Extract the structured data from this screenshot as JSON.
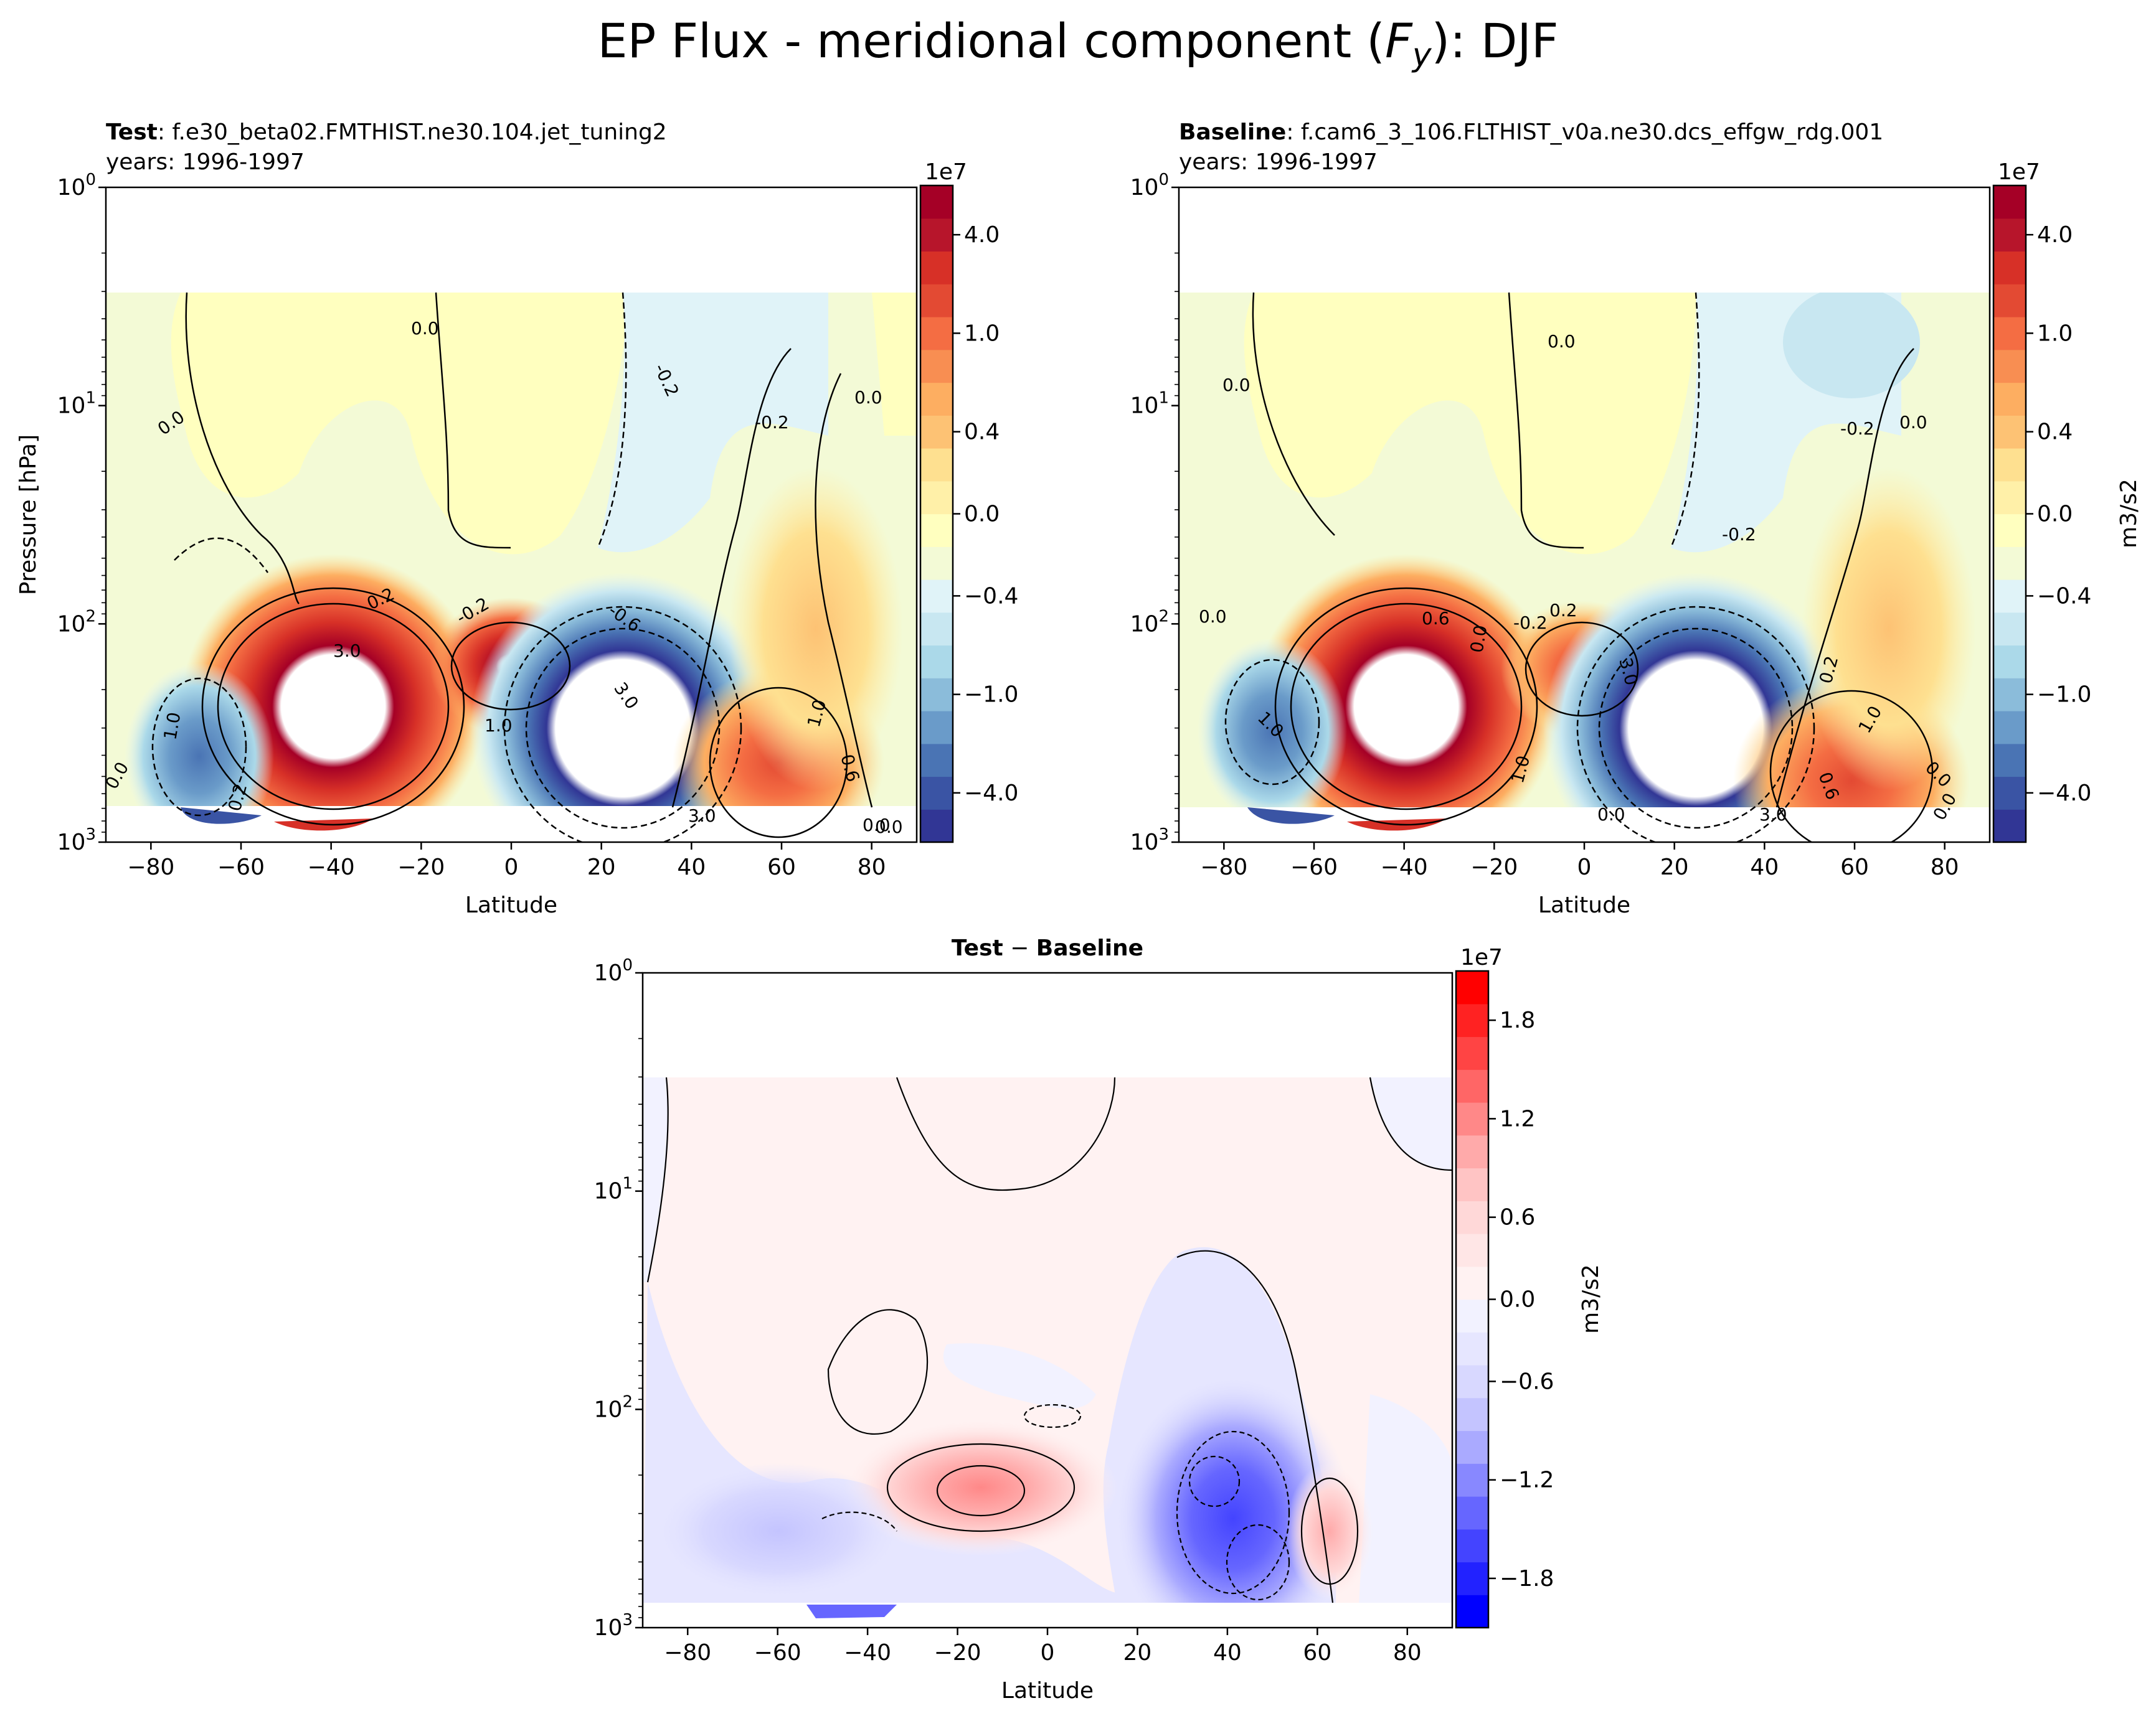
{
  "figure": {
    "title_plain": "EP Flux - meridional component (",
    "title_var": "F",
    "title_var_sub": "y",
    "title_suffix": "): DJF"
  },
  "colors": {
    "rdylbu": [
      "#313695",
      "#3a54a4",
      "#4a74b4",
      "#6a9bc9",
      "#8bbcda",
      "#abd9e9",
      "#c8e7f1",
      "#e0f3f8",
      "#f3fad6",
      "#ffffbf",
      "#fff0a8",
      "#fee090",
      "#fdc274",
      "#fdae61",
      "#f88e52",
      "#f46d43",
      "#e34a33",
      "#d73027",
      "#b7152b",
      "#a50026"
    ],
    "bwr": [
      "#0000ff",
      "#2222ff",
      "#4444ff",
      "#6666ff",
      "#8888ff",
      "#aaaaff",
      "#c4c4ff",
      "#d8d8ff",
      "#e6e6ff",
      "#f2f2ff",
      "#fff2f2",
      "#ffe6e6",
      "#ffd8d8",
      "#ffc4c4",
      "#ffaaaa",
      "#ff8888",
      "#ff6666",
      "#ff4444",
      "#ff2222",
      "#ff0000"
    ]
  },
  "chart_data": [
    {
      "type": "contour",
      "panel": "test",
      "title_bold": "Test",
      "title_rest": ": f.e30_beta02.FMTHIST.ne30.104.jet_tuning2",
      "subtitle": "years: 1996-1997",
      "xlabel": "Latitude",
      "ylabel": "Pressure [hPa]",
      "xlim": [
        -90,
        90
      ],
      "ylim": [
        1000,
        1
      ],
      "yscale": "log",
      "xticks": [
        "−80",
        "−60",
        "−40",
        "−20",
        "0",
        "20",
        "40",
        "60",
        "80"
      ],
      "ytick_base": "10",
      "ytick_exps": [
        "0",
        "1",
        "2",
        "3"
      ],
      "colorbar": {
        "multiplier": "1e7",
        "ticks": [
          "4.0",
          "1.0",
          "0.4",
          "0.0",
          "−0.4",
          "−1.0",
          "−4.0"
        ],
        "label": ""
      },
      "contour_labels": [
        "0.0",
        "0.0",
        "0.0",
        "-0.2",
        "-0.2",
        "0.0",
        "0.2",
        "3.0",
        "-0.2",
        "-0.6",
        "3.0",
        "1.0",
        "1.0",
        "1.0",
        "0.6",
        "0.2",
        "0.0",
        "3.0",
        "0.0"
      ],
      "features": [
        {
          "kind": "max",
          "lat": -40,
          "plev": 250,
          "value": "> 4.0e7"
        },
        {
          "kind": "max",
          "lat": 2,
          "plev": 170,
          "value": "> 4.0e7"
        },
        {
          "kind": "min",
          "lat": 28,
          "plev": 330,
          "value": "< -4.0e7"
        },
        {
          "kind": "min",
          "lat": -72,
          "plev": 550,
          "value": "-1.0e7"
        },
        {
          "kind": "max",
          "lat": 62,
          "plev": 450,
          "value": "2.0e7"
        }
      ]
    },
    {
      "type": "contour",
      "panel": "baseline",
      "title_bold": "Baseline",
      "title_rest": ": f.cam6_3_106.FLTHIST_v0a.ne30.dcs_effgw_rdg.001",
      "subtitle": "years: 1996-1997",
      "xlabel": "Latitude",
      "ylabel": "",
      "xlim": [
        -90,
        90
      ],
      "ylim": [
        1000,
        1
      ],
      "yscale": "log",
      "xticks": [
        "−80",
        "−60",
        "−40",
        "−20",
        "0",
        "20",
        "40",
        "60",
        "80"
      ],
      "ytick_base": "10",
      "ytick_exps": [
        "0",
        "1",
        "2",
        "3"
      ],
      "colorbar": {
        "multiplier": "1e7",
        "ticks": [
          "4.0",
          "1.0",
          "0.4",
          "0.0",
          "−0.4",
          "−1.0",
          "−4.0"
        ],
        "label": "m3/s2"
      },
      "contour_labels": [
        "0.0",
        "0.0",
        "-0.2",
        "0.0",
        "0.0",
        "-0.2",
        "0.6",
        "0.2",
        "-0.2",
        "0.0",
        "1.0",
        "3.0",
        "1.0",
        "0.2",
        "1.0",
        "0.6",
        "0.0",
        "3.0",
        "0.0",
        "0.0"
      ],
      "features": [
        {
          "kind": "max",
          "lat": -40,
          "plev": 250,
          "value": "> 4.0e7"
        },
        {
          "kind": "max",
          "lat": 2,
          "plev": 170,
          "value": "3.0e7"
        },
        {
          "kind": "min",
          "lat": 28,
          "plev": 330,
          "value": "< -4.0e7"
        },
        {
          "kind": "min",
          "lat": -68,
          "plev": 450,
          "value": "-1.0e7"
        },
        {
          "kind": "max",
          "lat": 56,
          "plev": 550,
          "value": "2.0e7"
        }
      ]
    },
    {
      "type": "contour",
      "panel": "difference",
      "title_bold_left": "Test",
      "title_mid": " − ",
      "title_bold_right": "Baseline",
      "xlabel": "Latitude",
      "ylabel": "",
      "xlim": [
        -90,
        90
      ],
      "ylim": [
        1000,
        1
      ],
      "yscale": "log",
      "xticks": [
        "−80",
        "−60",
        "−40",
        "−20",
        "0",
        "20",
        "40",
        "60",
        "80"
      ],
      "ytick_base": "10",
      "ytick_exps": [
        "0",
        "1",
        "2",
        "3"
      ],
      "colorbar": {
        "multiplier": "1e7",
        "ticks": [
          "1.8",
          "1.2",
          "0.6",
          "0.0",
          "−0.6",
          "−1.2",
          "−1.8"
        ],
        "label": "m3/s2"
      },
      "features": [
        {
          "kind": "max",
          "lat": -12,
          "plev": 230,
          "value": "0.6e7"
        },
        {
          "kind": "min",
          "lat": 36,
          "plev": 220,
          "value": "-1.2e7"
        },
        {
          "kind": "min",
          "lat": 44,
          "plev": 550,
          "value": "-0.9e7"
        },
        {
          "kind": "max",
          "lat": 61,
          "plev": 340,
          "value": "0.5e7"
        },
        {
          "kind": "min",
          "lat": -60,
          "plev": 370,
          "value": "-0.3e7"
        }
      ]
    }
  ]
}
